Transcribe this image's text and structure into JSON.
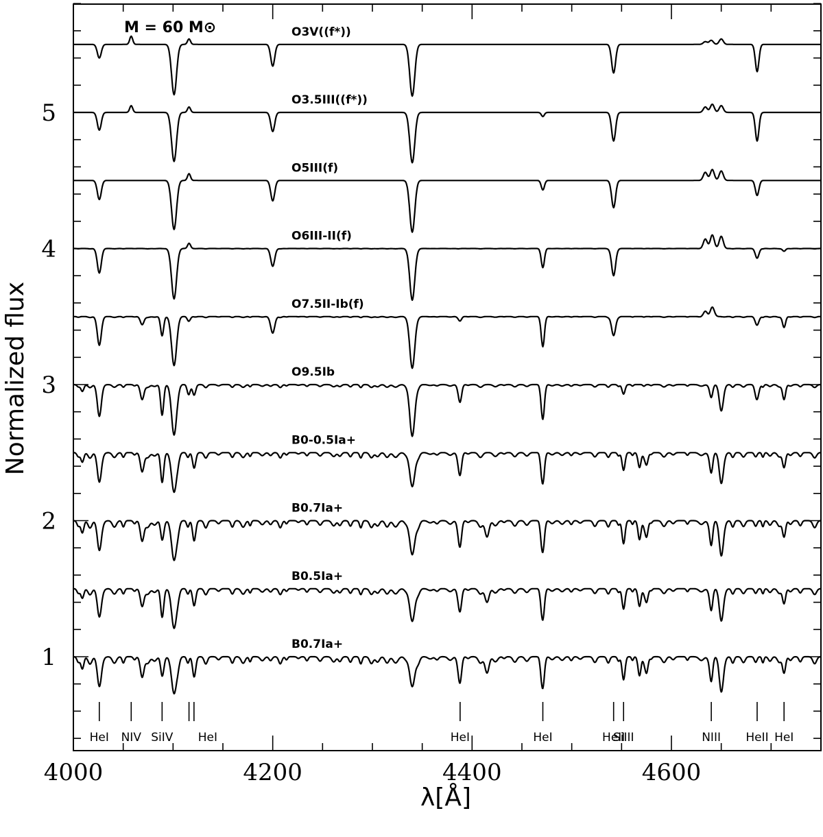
{
  "chart_data": {
    "type": "line",
    "title": "",
    "mass_label": "M = 60 M⊙",
    "xlabel": "λ[Å]",
    "ylabel": "Normalized flux",
    "xlim": [
      4000,
      4750
    ],
    "ylim": [
      0.35,
      5.85
    ],
    "x_major_ticks": [
      4000,
      4200,
      4400,
      4600
    ],
    "x_minor_step": 50,
    "y_major_ticks": [
      1,
      2,
      3,
      4,
      5
    ],
    "y_minor_step": 0.2,
    "grid": false,
    "series": [
      {
        "name": "O3V((f*))",
        "offset": 5.5,
        "strength": 0.0,
        "lines": [
          {
            "x": 4026,
            "depth": 0.1,
            "w": 2.0
          },
          {
            "x": 4058,
            "depth": -0.06,
            "w": 1.5
          },
          {
            "x": 4101,
            "depth": 0.37,
            "w": 2.5
          },
          {
            "x": 4116,
            "depth": -0.04,
            "w": 1.5
          },
          {
            "x": 4200,
            "depth": 0.16,
            "w": 2.0
          },
          {
            "x": 4340,
            "depth": 0.38,
            "w": 2.5
          },
          {
            "x": 4542,
            "depth": 0.21,
            "w": 2.0
          },
          {
            "x": 4634,
            "depth": -0.02,
            "w": 2.0
          },
          {
            "x": 4640,
            "depth": -0.03,
            "w": 2.0
          },
          {
            "x": 4650,
            "depth": -0.04,
            "w": 2.0
          },
          {
            "x": 4686,
            "depth": 0.2,
            "w": 1.8
          }
        ]
      },
      {
        "name": "O3.5III((f*))",
        "offset": 5.0,
        "strength": 0.0,
        "lines": [
          {
            "x": 4026,
            "depth": 0.13,
            "w": 2.0
          },
          {
            "x": 4058,
            "depth": -0.05,
            "w": 1.5
          },
          {
            "x": 4101,
            "depth": 0.36,
            "w": 2.5
          },
          {
            "x": 4116,
            "depth": -0.04,
            "w": 1.5
          },
          {
            "x": 4200,
            "depth": 0.14,
            "w": 2.0
          },
          {
            "x": 4340,
            "depth": 0.37,
            "w": 2.5
          },
          {
            "x": 4471,
            "depth": 0.03,
            "w": 1.5
          },
          {
            "x": 4542,
            "depth": 0.21,
            "w": 2.0
          },
          {
            "x": 4634,
            "depth": -0.04,
            "w": 2.0
          },
          {
            "x": 4641,
            "depth": -0.06,
            "w": 2.0
          },
          {
            "x": 4650,
            "depth": -0.05,
            "w": 2.0
          },
          {
            "x": 4686,
            "depth": 0.21,
            "w": 1.8
          }
        ]
      },
      {
        "name": "O5III(f)",
        "offset": 4.5,
        "strength": 0.0,
        "lines": [
          {
            "x": 4026,
            "depth": 0.14,
            "w": 2.0
          },
          {
            "x": 4101,
            "depth": 0.36,
            "w": 2.5
          },
          {
            "x": 4116,
            "depth": -0.05,
            "w": 1.5
          },
          {
            "x": 4200,
            "depth": 0.15,
            "w": 2.0
          },
          {
            "x": 4340,
            "depth": 0.38,
            "w": 2.5
          },
          {
            "x": 4471,
            "depth": 0.07,
            "w": 1.6
          },
          {
            "x": 4542,
            "depth": 0.2,
            "w": 2.0
          },
          {
            "x": 4634,
            "depth": -0.06,
            "w": 2.0
          },
          {
            "x": 4641,
            "depth": -0.08,
            "w": 2.0
          },
          {
            "x": 4650,
            "depth": -0.07,
            "w": 2.0
          },
          {
            "x": 4686,
            "depth": 0.11,
            "w": 1.8
          }
        ]
      },
      {
        "name": "O6III-II(f)",
        "offset": 4.0,
        "strength": 0.03,
        "lines": [
          {
            "x": 4026,
            "depth": 0.18,
            "w": 2.0
          },
          {
            "x": 4101,
            "depth": 0.37,
            "w": 2.5
          },
          {
            "x": 4116,
            "depth": -0.04,
            "w": 1.5
          },
          {
            "x": 4200,
            "depth": 0.13,
            "w": 2.0
          },
          {
            "x": 4340,
            "depth": 0.38,
            "w": 2.5
          },
          {
            "x": 4471,
            "depth": 0.14,
            "w": 1.6
          },
          {
            "x": 4542,
            "depth": 0.2,
            "w": 2.0
          },
          {
            "x": 4634,
            "depth": -0.07,
            "w": 2.0
          },
          {
            "x": 4641,
            "depth": -0.1,
            "w": 2.0
          },
          {
            "x": 4650,
            "depth": -0.09,
            "w": 2.0
          },
          {
            "x": 4686,
            "depth": 0.07,
            "w": 1.8
          },
          {
            "x": 4713,
            "depth": 0.02,
            "w": 1.5
          }
        ]
      },
      {
        "name": "O7.5II-Ib(f)",
        "offset": 3.5,
        "strength": 0.08,
        "lines": [
          {
            "x": 4026,
            "depth": 0.21,
            "w": 2.0
          },
          {
            "x": 4069,
            "depth": 0.06,
            "w": 1.8
          },
          {
            "x": 4089,
            "depth": 0.14,
            "w": 1.5
          },
          {
            "x": 4101,
            "depth": 0.36,
            "w": 2.5
          },
          {
            "x": 4116,
            "depth": 0.03,
            "w": 1.5
          },
          {
            "x": 4200,
            "depth": 0.12,
            "w": 2.0
          },
          {
            "x": 4340,
            "depth": 0.38,
            "w": 2.5
          },
          {
            "x": 4388,
            "depth": 0.03,
            "w": 1.5
          },
          {
            "x": 4471,
            "depth": 0.22,
            "w": 1.6
          },
          {
            "x": 4542,
            "depth": 0.14,
            "w": 2.0
          },
          {
            "x": 4634,
            "depth": -0.04,
            "w": 2.0
          },
          {
            "x": 4641,
            "depth": -0.07,
            "w": 2.0
          },
          {
            "x": 4686,
            "depth": 0.06,
            "w": 1.8
          },
          {
            "x": 4713,
            "depth": 0.08,
            "w": 1.5
          }
        ]
      },
      {
        "name": "O9.5Ib",
        "offset": 3.0,
        "strength": 0.25,
        "lines": [
          {
            "x": 4009,
            "depth": 0.05,
            "w": 1.5
          },
          {
            "x": 4026,
            "depth": 0.23,
            "w": 2.0
          },
          {
            "x": 4069,
            "depth": 0.11,
            "w": 1.8
          },
          {
            "x": 4089,
            "depth": 0.22,
            "w": 1.5
          },
          {
            "x": 4101,
            "depth": 0.37,
            "w": 2.5
          },
          {
            "x": 4116,
            "depth": 0.06,
            "w": 1.5
          },
          {
            "x": 4121,
            "depth": 0.07,
            "w": 1.5
          },
          {
            "x": 4340,
            "depth": 0.38,
            "w": 2.5
          },
          {
            "x": 4388,
            "depth": 0.12,
            "w": 1.6
          },
          {
            "x": 4471,
            "depth": 0.25,
            "w": 1.6
          },
          {
            "x": 4552,
            "depth": 0.07,
            "w": 1.5
          },
          {
            "x": 4640,
            "depth": 0.09,
            "w": 1.5
          },
          {
            "x": 4650,
            "depth": 0.19,
            "w": 2.0
          },
          {
            "x": 4686,
            "depth": 0.1,
            "w": 1.8
          },
          {
            "x": 4713,
            "depth": 0.11,
            "w": 1.5
          }
        ]
      },
      {
        "name": "B0-0.5Ia+",
        "offset": 2.5,
        "strength": 0.45,
        "lines": [
          {
            "x": 4009,
            "depth": 0.07,
            "w": 1.5
          },
          {
            "x": 4026,
            "depth": 0.21,
            "w": 2.0
          },
          {
            "x": 4069,
            "depth": 0.14,
            "w": 1.8
          },
          {
            "x": 4089,
            "depth": 0.21,
            "w": 1.5
          },
          {
            "x": 4101,
            "depth": 0.29,
            "w": 2.5
          },
          {
            "x": 4121,
            "depth": 0.1,
            "w": 1.5
          },
          {
            "x": 4340,
            "depth": 0.25,
            "w": 2.5
          },
          {
            "x": 4388,
            "depth": 0.15,
            "w": 1.6
          },
          {
            "x": 4471,
            "depth": 0.22,
            "w": 1.6
          },
          {
            "x": 4552,
            "depth": 0.13,
            "w": 1.5
          },
          {
            "x": 4568,
            "depth": 0.11,
            "w": 1.5
          },
          {
            "x": 4575,
            "depth": 0.09,
            "w": 1.5
          },
          {
            "x": 4640,
            "depth": 0.14,
            "w": 1.5
          },
          {
            "x": 4650,
            "depth": 0.22,
            "w": 2.0
          },
          {
            "x": 4713,
            "depth": 0.11,
            "w": 1.5
          }
        ]
      },
      {
        "name": "B0.7Ia+",
        "offset": 2.0,
        "strength": 0.6,
        "lines": [
          {
            "x": 4009,
            "depth": 0.09,
            "w": 1.5
          },
          {
            "x": 4026,
            "depth": 0.21,
            "w": 2.0
          },
          {
            "x": 4069,
            "depth": 0.15,
            "w": 1.8
          },
          {
            "x": 4089,
            "depth": 0.13,
            "w": 1.5
          },
          {
            "x": 4101,
            "depth": 0.29,
            "w": 2.5
          },
          {
            "x": 4121,
            "depth": 0.13,
            "w": 1.5
          },
          {
            "x": 4340,
            "depth": 0.25,
            "w": 2.5
          },
          {
            "x": 4388,
            "depth": 0.17,
            "w": 1.6
          },
          {
            "x": 4415,
            "depth": 0.12,
            "w": 2.0
          },
          {
            "x": 4471,
            "depth": 0.22,
            "w": 1.6
          },
          {
            "x": 4552,
            "depth": 0.17,
            "w": 1.5
          },
          {
            "x": 4568,
            "depth": 0.14,
            "w": 1.5
          },
          {
            "x": 4575,
            "depth": 0.12,
            "w": 1.5
          },
          {
            "x": 4640,
            "depth": 0.17,
            "w": 1.5
          },
          {
            "x": 4650,
            "depth": 0.25,
            "w": 2.0
          },
          {
            "x": 4713,
            "depth": 0.12,
            "w": 1.5
          }
        ]
      },
      {
        "name": "B0.5Ia+",
        "offset": 1.5,
        "strength": 0.5,
        "lines": [
          {
            "x": 4009,
            "depth": 0.07,
            "w": 1.5
          },
          {
            "x": 4026,
            "depth": 0.2,
            "w": 2.0
          },
          {
            "x": 4069,
            "depth": 0.13,
            "w": 1.8
          },
          {
            "x": 4089,
            "depth": 0.2,
            "w": 1.5
          },
          {
            "x": 4101,
            "depth": 0.29,
            "w": 2.5
          },
          {
            "x": 4121,
            "depth": 0.11,
            "w": 1.5
          },
          {
            "x": 4340,
            "depth": 0.24,
            "w": 2.5
          },
          {
            "x": 4388,
            "depth": 0.15,
            "w": 1.6
          },
          {
            "x": 4415,
            "depth": 0.1,
            "w": 2.0
          },
          {
            "x": 4471,
            "depth": 0.22,
            "w": 1.6
          },
          {
            "x": 4552,
            "depth": 0.15,
            "w": 1.5
          },
          {
            "x": 4568,
            "depth": 0.13,
            "w": 1.5
          },
          {
            "x": 4575,
            "depth": 0.1,
            "w": 1.5
          },
          {
            "x": 4640,
            "depth": 0.15,
            "w": 1.5
          },
          {
            "x": 4650,
            "depth": 0.23,
            "w": 2.0
          },
          {
            "x": 4713,
            "depth": 0.11,
            "w": 1.5
          }
        ]
      },
      {
        "name": "B0.7Ia+",
        "offset": 1.0,
        "strength": 0.6,
        "lines": [
          {
            "x": 4009,
            "depth": 0.09,
            "w": 1.5
          },
          {
            "x": 4026,
            "depth": 0.21,
            "w": 2.0
          },
          {
            "x": 4069,
            "depth": 0.15,
            "w": 1.8
          },
          {
            "x": 4089,
            "depth": 0.13,
            "w": 1.5
          },
          {
            "x": 4101,
            "depth": 0.27,
            "w": 2.5
          },
          {
            "x": 4121,
            "depth": 0.13,
            "w": 1.5
          },
          {
            "x": 4340,
            "depth": 0.22,
            "w": 2.5
          },
          {
            "x": 4388,
            "depth": 0.17,
            "w": 1.6
          },
          {
            "x": 4415,
            "depth": 0.12,
            "w": 2.0
          },
          {
            "x": 4471,
            "depth": 0.22,
            "w": 1.6
          },
          {
            "x": 4552,
            "depth": 0.17,
            "w": 1.5
          },
          {
            "x": 4568,
            "depth": 0.14,
            "w": 1.5
          },
          {
            "x": 4575,
            "depth": 0.12,
            "w": 1.5
          },
          {
            "x": 4640,
            "depth": 0.17,
            "w": 1.5
          },
          {
            "x": 4650,
            "depth": 0.25,
            "w": 2.0
          },
          {
            "x": 4713,
            "depth": 0.12,
            "w": 1.5
          }
        ]
      }
    ],
    "line_ids": [
      {
        "label": "HeI",
        "x": [
          4026
        ]
      },
      {
        "label": "NIV",
        "x": [
          4058
        ]
      },
      {
        "label": "SiIV",
        "x": [
          4089
        ]
      },
      {
        "label": "HeI",
        "x": [
          4116,
          4121
        ]
      },
      {
        "label": "HeI",
        "x": [
          4388
        ]
      },
      {
        "label": "HeI",
        "x": [
          4471
        ]
      },
      {
        "label": "HeII",
        "x": [
          4542
        ]
      },
      {
        "label": "SiIII",
        "x": [
          4552
        ]
      },
      {
        "label": "NIII",
        "x": [
          4640
        ]
      },
      {
        "label": "HeII",
        "x": [
          4686
        ]
      },
      {
        "label": "HeI",
        "x": [
          4713
        ]
      }
    ]
  }
}
